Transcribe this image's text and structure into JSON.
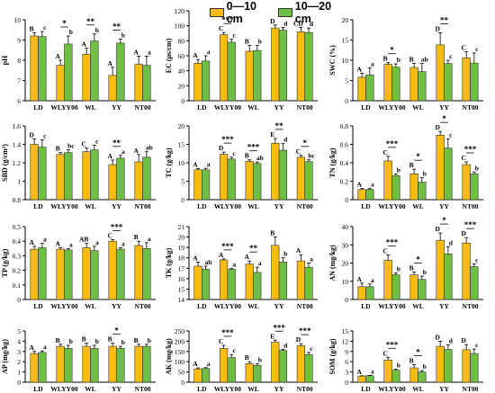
{
  "legend": {
    "series_a": "0—10 cm",
    "series_b": "10—20 cm",
    "color_a": "#f7bc0f",
    "color_b": "#6fbf44"
  },
  "chart_data": [
    {
      "type": "bar",
      "ylabel": "pH",
      "categories": [
        "LD",
        "WLYY00",
        "WL",
        "YY",
        "NT00"
      ],
      "ylim": [
        6,
        10
      ],
      "yticks": [
        6,
        7,
        8,
        9,
        10
      ],
      "series": [
        {
          "name": "0—10 cm",
          "values": [
            9.2,
            7.75,
            8.3,
            7.25,
            7.8
          ],
          "errors": [
            0.15,
            0.25,
            0.3,
            0.4,
            0.4
          ]
        },
        {
          "name": "10—20 cm",
          "values": [
            9.17,
            8.8,
            8.95,
            8.85,
            7.75
          ],
          "errors": [
            0.25,
            0.4,
            0.35,
            0.2,
            0.45
          ]
        }
      ],
      "letters_a": [
        "B",
        "A",
        "A",
        "A",
        "A"
      ],
      "letters_b": [
        "c",
        "b",
        "b",
        "b",
        "a"
      ],
      "stars": [
        "",
        "*",
        "**",
        "**",
        ""
      ]
    },
    {
      "type": "bar",
      "ylabel": "EC (μs/cm)",
      "categories": [
        "LD",
        "WLYY00",
        "WL",
        "YY",
        "NT00"
      ],
      "ylim": [
        0,
        120
      ],
      "yticks": [
        0,
        20,
        40,
        60,
        80,
        100,
        120
      ],
      "series": [
        {
          "name": "0—10 cm",
          "values": [
            50,
            88,
            66,
            97,
            92
          ],
          "errors": [
            5,
            3,
            8,
            4,
            6
          ]
        },
        {
          "name": "10—20 cm",
          "values": [
            53,
            78,
            67,
            94,
            91
          ],
          "errors": [
            7,
            4,
            7,
            4,
            6
          ]
        }
      ],
      "letters_a": [
        "A",
        "C",
        "B",
        "D",
        "CD"
      ],
      "letters_b": [
        "a",
        "c",
        "b",
        "d",
        "d"
      ],
      "stars": [
        "",
        "***",
        "",
        "",
        ""
      ]
    },
    {
      "type": "bar",
      "ylabel": "SWC (%)",
      "categories": [
        "LD",
        "WLYY00",
        "WL",
        "YY",
        "NT00"
      ],
      "ylim": [
        0,
        20
      ],
      "yticks": [
        0,
        5,
        10,
        15,
        20
      ],
      "series": [
        {
          "name": "0—10 cm",
          "values": [
            5.8,
            9,
            8.2,
            13.8,
            10.6
          ],
          "errors": [
            1,
            0.4,
            1,
            3,
            1.5
          ]
        },
        {
          "name": "10—20 cm",
          "values": [
            6.4,
            8.3,
            7.2,
            9.2,
            9.3
          ],
          "errors": [
            1.7,
            0.8,
            2,
            0.8,
            2.5
          ]
        }
      ],
      "letters_a": [
        "A",
        "B",
        "B",
        "D",
        "C"
      ],
      "letters_b": [
        "a",
        "b",
        "ab",
        "c",
        "c"
      ],
      "stars": [
        "",
        "*",
        "",
        "**",
        ""
      ]
    },
    {
      "type": "bar",
      "ylabel": "SBD (g/cm³)",
      "categories": [
        "LD",
        "WLYY00",
        "WL",
        "YY",
        "NT00"
      ],
      "ylim": [
        0.8,
        1.6
      ],
      "yticks": [
        0.8,
        1.0,
        1.2,
        1.4,
        1.6
      ],
      "series": [
        {
          "name": "0—10 cm",
          "values": [
            1.4,
            1.29,
            1.32,
            1.18,
            1.21
          ],
          "errors": [
            0.06,
            0.02,
            0.04,
            0.05,
            0.08
          ]
        },
        {
          "name": "10—20 cm",
          "values": [
            1.37,
            1.31,
            1.34,
            1.25,
            1.26
          ],
          "errors": [
            0.08,
            0.03,
            0.05,
            0.03,
            0.06
          ]
        }
      ],
      "letters_a": [
        "D",
        "B",
        "C",
        "A",
        "A"
      ],
      "letters_b": [
        "c",
        "bc",
        "c",
        "a",
        "ab"
      ],
      "stars": [
        "",
        "",
        "",
        "**",
        ""
      ]
    },
    {
      "type": "bar",
      "ylabel": "TC (g/kg)",
      "categories": [
        "LD",
        "WLYY00",
        "WL",
        "YY",
        "NT00"
      ],
      "ylim": [
        0,
        20
      ],
      "yticks": [
        0,
        5,
        10,
        15,
        20
      ],
      "series": [
        {
          "name": "0—10 cm",
          "values": [
            8.1,
            12.3,
            10.4,
            15.3,
            11.5
          ],
          "errors": [
            0.3,
            0.6,
            0.4,
            1.3,
            0.5
          ]
        },
        {
          "name": "10—20 cm",
          "values": [
            8.1,
            11,
            9.8,
            13.4,
            10.3
          ],
          "errors": [
            0.4,
            0.5,
            0.4,
            1.8,
            0.5
          ]
        }
      ],
      "letters_a": [
        "A",
        "D",
        "B",
        "E",
        "C"
      ],
      "letters_b": [
        "a",
        "c",
        "ab",
        "d",
        "bc"
      ],
      "stars": [
        "",
        "***",
        "***",
        "**",
        "*"
      ]
    },
    {
      "type": "bar",
      "ylabel": "TN (g/kg)",
      "categories": [
        "LD",
        "WLYY00",
        "WL",
        "YY",
        "NT00"
      ],
      "ylim": [
        0.0,
        0.8
      ],
      "yticks": [
        0.0,
        0.2,
        0.4,
        0.6,
        0.8
      ],
      "series": [
        {
          "name": "0—10 cm",
          "values": [
            0.11,
            0.42,
            0.28,
            0.7,
            0.38
          ],
          "errors": [
            0.01,
            0.05,
            0.05,
            0.04,
            0.03
          ]
        },
        {
          "name": "10—20 cm",
          "values": [
            0.11,
            0.26,
            0.19,
            0.56,
            0.28
          ],
          "errors": [
            0.01,
            0.02,
            0.05,
            0.1,
            0.02
          ]
        }
      ],
      "letters_a": [
        "A",
        "C",
        "B",
        "D",
        "C"
      ],
      "letters_b": [
        "a",
        "b",
        "b",
        "c",
        "b"
      ],
      "stars": [
        "",
        "***",
        "*",
        "*",
        "***"
      ]
    },
    {
      "type": "bar",
      "ylabel": "TP (g/kg)",
      "categories": [
        "LD",
        "WLYY00",
        "WL",
        "YY",
        "NT00"
      ],
      "ylim": [
        0.0,
        0.5
      ],
      "yticks": [
        0.0,
        0.1,
        0.2,
        0.3,
        0.4,
        0.5
      ],
      "series": [
        {
          "name": "0—10 cm",
          "values": [
            0.345,
            0.345,
            0.355,
            0.4,
            0.37
          ],
          "errors": [
            0.02,
            0.01,
            0.03,
            0.01,
            0.03
          ]
        },
        {
          "name": "10—20 cm",
          "values": [
            0.355,
            0.34,
            0.335,
            0.345,
            0.35
          ],
          "errors": [
            0.03,
            0.01,
            0.03,
            0.01,
            0.04
          ]
        }
      ],
      "letters_a": [
        "A",
        "A",
        "AB",
        "C",
        "B"
      ],
      "letters_b": [
        "a",
        "a",
        "a",
        "a",
        "a"
      ],
      "stars": [
        "",
        "",
        "",
        "***",
        ""
      ]
    },
    {
      "type": "bar",
      "ylabel": "TK (g/kg)",
      "categories": [
        "LD",
        "WLYY00",
        "WL",
        "YY",
        "NT00"
      ],
      "ylim": [
        14,
        21
      ],
      "yticks": [
        14,
        15,
        16,
        17,
        18,
        19,
        20,
        21
      ],
      "series": [
        {
          "name": "0—10 cm",
          "values": [
            17.2,
            17.8,
            17.4,
            19.2,
            17.7
          ],
          "errors": [
            0.4,
            0.1,
            0.3,
            0.8,
            0.6
          ]
        },
        {
          "name": "10—20 cm",
          "values": [
            16.9,
            16.9,
            16.6,
            17.6,
            17.1
          ],
          "errors": [
            0.3,
            0.1,
            0.5,
            0.4,
            0.4
          ]
        }
      ],
      "letters_a": [
        "A",
        "A",
        "A",
        "B",
        "A"
      ],
      "letters_b": [
        "ab",
        "a",
        "a",
        "b",
        "a"
      ],
      "stars": [
        "",
        "***",
        "**",
        "",
        ""
      ]
    },
    {
      "type": "bar",
      "ylabel": "AN (mg/kg)",
      "categories": [
        "LD",
        "WLYY00",
        "WL",
        "YY",
        "NT00"
      ],
      "ylim": [
        0,
        40
      ],
      "yticks": [
        0,
        10,
        20,
        30,
        40
      ],
      "series": [
        {
          "name": "0—10 cm",
          "values": [
            7,
            21.5,
            13.5,
            32.5,
            31
          ],
          "errors": [
            2,
            3,
            1.5,
            4,
            3
          ]
        },
        {
          "name": "10—20 cm",
          "values": [
            7,
            13.5,
            11,
            25,
            18
          ],
          "errors": [
            1.5,
            1,
            1.8,
            4,
            1.5
          ]
        }
      ],
      "letters_a": [
        "A",
        "C",
        "B",
        "D",
        "D"
      ],
      "letters_b": [
        "a",
        "b",
        "b",
        "d",
        "c"
      ],
      "stars": [
        "",
        "***",
        "*",
        "*",
        "***"
      ]
    },
    {
      "type": "bar",
      "ylabel": "AP (mg/kg)",
      "categories": [
        "LD",
        "WLYY00",
        "WL",
        "YY",
        "NT00"
      ],
      "ylim": [
        0,
        5
      ],
      "yticks": [
        0,
        1,
        2,
        3,
        4,
        5
      ],
      "series": [
        {
          "name": "0—10 cm",
          "values": [
            2.8,
            3.5,
            3.5,
            3.5,
            3.5
          ],
          "errors": [
            0.2,
            0.2,
            0.3,
            0.3,
            0.2
          ]
        },
        {
          "name": "10—20 cm",
          "values": [
            2.9,
            3.3,
            3.3,
            3.3,
            3.5
          ],
          "errors": [
            0.15,
            0.3,
            0.3,
            0.2,
            0.2
          ]
        }
      ],
      "letters_a": [
        "A",
        "B",
        "B",
        "B",
        "B"
      ],
      "letters_b": [
        "a",
        "b",
        "b",
        "b",
        "b"
      ],
      "stars": [
        "",
        "",
        "",
        "*",
        ""
      ]
    },
    {
      "type": "bar",
      "ylabel": "AK (mg/kg)",
      "categories": [
        "LD",
        "WLYY00",
        "WL",
        "YY",
        "NT00"
      ],
      "ylim": [
        0,
        250
      ],
      "yticks": [
        0,
        50,
        100,
        150,
        200,
        250
      ],
      "series": [
        {
          "name": "0—10 cm",
          "values": [
            65,
            165,
            90,
            195,
            178
          ],
          "errors": [
            5,
            15,
            10,
            10,
            10
          ]
        },
        {
          "name": "10—20 cm",
          "values": [
            67,
            120,
            82,
            155,
            135
          ],
          "errors": [
            4,
            15,
            8,
            6,
            10
          ]
        }
      ],
      "letters_a": [
        "A",
        "C",
        "B",
        "E",
        "D"
      ],
      "letters_b": [
        "a",
        "c",
        "b",
        "d",
        "c"
      ],
      "stars": [
        "",
        "***",
        "",
        "***",
        "***"
      ]
    },
    {
      "type": "bar",
      "ylabel": "SOM (g/kg)",
      "categories": [
        "LD",
        "WLYY00",
        "WL",
        "YY",
        "NT00"
      ],
      "ylim": [
        0,
        15
      ],
      "yticks": [
        0,
        3,
        6,
        9,
        12,
        15
      ],
      "series": [
        {
          "name": "0—10 cm",
          "values": [
            1.8,
            6.5,
            4.2,
            10.5,
            9.5
          ],
          "errors": [
            0.1,
            0.8,
            0.9,
            1.5,
            1.5
          ]
        },
        {
          "name": "10—20 cm",
          "values": [
            1.9,
            3.5,
            3,
            9.6,
            8.4
          ],
          "errors": [
            0.1,
            0.3,
            0.4,
            1.3,
            1.3
          ]
        }
      ],
      "letters_a": [
        "A",
        "C",
        "B",
        "D",
        "D"
      ],
      "letters_b": [
        "a",
        "b",
        "b",
        "d",
        "c"
      ],
      "stars": [
        "",
        "***",
        "*",
        "",
        ""
      ]
    }
  ]
}
